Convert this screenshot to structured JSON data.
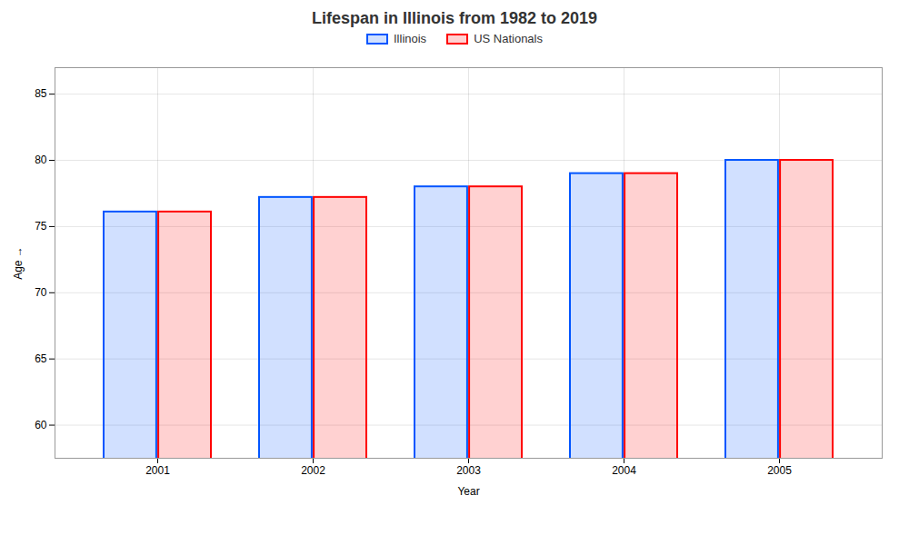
{
  "chart_data": {
    "type": "bar",
    "title": "Lifespan in Illinois from 1982 to 2019",
    "xlabel": "Year",
    "ylabel": "Age",
    "categories": [
      "2001",
      "2002",
      "2003",
      "2004",
      "2005"
    ],
    "series": [
      {
        "name": "Illinois",
        "color": "#0055ff",
        "values": [
          76.1,
          77.2,
          78.0,
          79.0,
          80.0
        ]
      },
      {
        "name": "US Nationals",
        "color": "#ff0000",
        "values": [
          76.1,
          77.2,
          78.0,
          79.0,
          80.0
        ]
      }
    ],
    "ylim": [
      57.5,
      87
    ],
    "yticks": [
      60,
      65,
      70,
      75,
      80,
      85
    ],
    "grid": true,
    "legend": "top"
  }
}
